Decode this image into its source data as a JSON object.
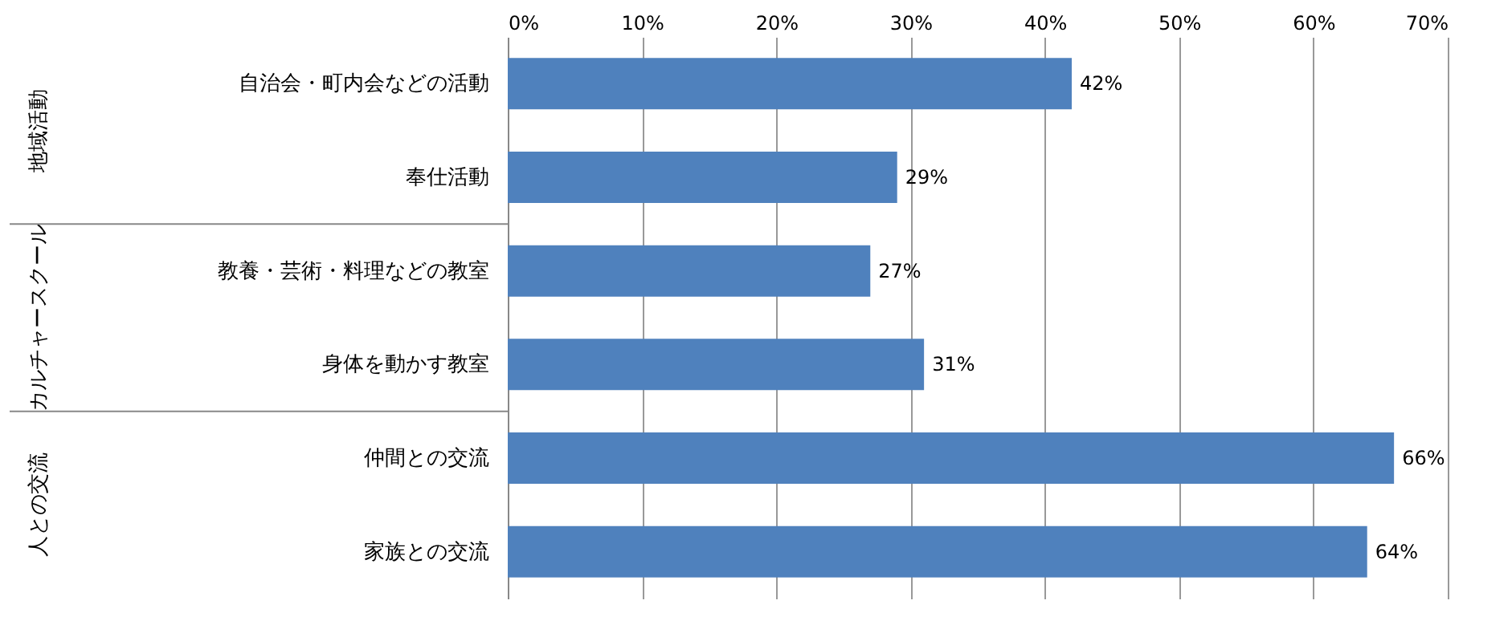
{
  "chart_data": {
    "type": "bar",
    "orientation": "horizontal",
    "categories": [
      "自治会・町内会などの活動",
      "奉仕活動",
      "教養・芸術・料理などの教室",
      "身体を動かす教室",
      "仲間との交流",
      "家族との交流"
    ],
    "values": [
      42,
      29,
      27,
      31,
      66,
      64
    ],
    "value_labels": [
      "42%",
      "29%",
      "27%",
      "31%",
      "66%",
      "64%"
    ],
    "color": "#4f81bd",
    "xlim": [
      0,
      70
    ],
    "xticks": [
      {
        "value": 0,
        "label": "0%"
      },
      {
        "value": 10,
        "label": "10%"
      },
      {
        "value": 20,
        "label": "20%"
      },
      {
        "value": 30,
        "label": "30%"
      },
      {
        "value": 40,
        "label": "40%"
      },
      {
        "value": 50,
        "label": "50%"
      },
      {
        "value": 60,
        "label": "60%"
      },
      {
        "value": 70,
        "label": "70%"
      }
    ],
    "grid": "x",
    "annotations": [
      "地域活動",
      "カルチャースクール",
      "人との交流"
    ]
  }
}
